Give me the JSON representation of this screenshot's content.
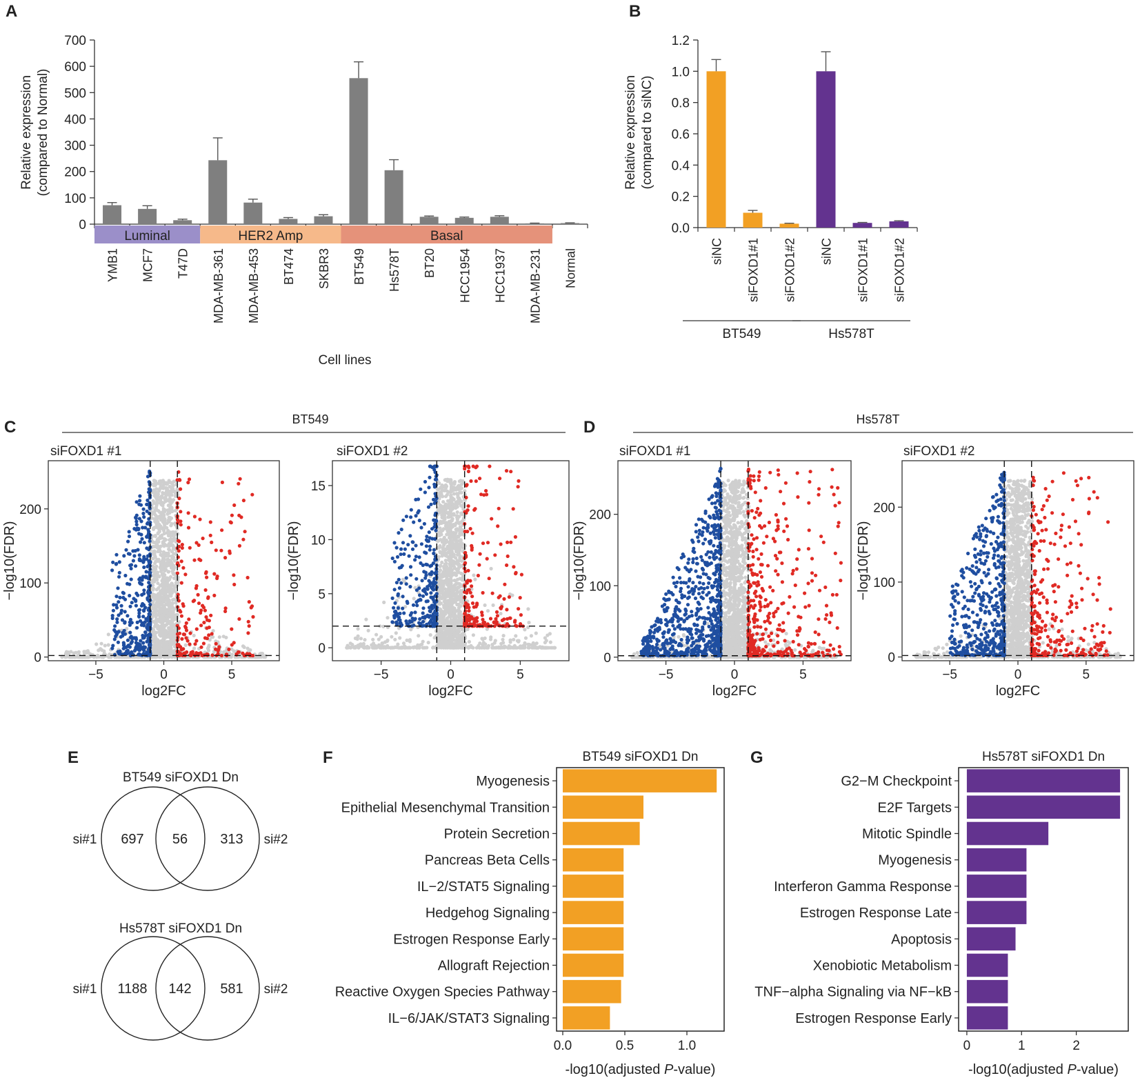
{
  "colors": {
    "bar_gray": "#7f7f7f",
    "orange": "#f2a024",
    "purple": "#63338f",
    "luminal": "#9b8fc9",
    "her2": "#f6b98a",
    "basal": "#e5927a",
    "down": "#1f4ea0",
    "up": "#e02a24",
    "ns": "#cfcfcf"
  },
  "panels": {
    "A": {
      "label": "A",
      "chart_data": {
        "type": "bar",
        "ylabel": "Relative expression (compared to Normal)",
        "ylabel_lines": [
          "Relative expression",
          "(compared to Normal)"
        ],
        "xlabel": "Cell lines",
        "ylim": [
          0,
          700
        ],
        "yticks": [
          "0",
          "100",
          "200",
          "300",
          "400",
          "500",
          "600",
          "700"
        ],
        "categories": [
          "YMB1",
          "MCF7",
          "T47D",
          "MDA-MB-361",
          "MDA-MB-453",
          "BT474",
          "SKBR3",
          "BT549",
          "Hs578T",
          "BT20",
          "HCC1954",
          "HCC1937",
          "MDA-MB-231",
          "Normal"
        ],
        "values": [
          72,
          58,
          15,
          243,
          82,
          20,
          30,
          555,
          205,
          28,
          24,
          28,
          3,
          4
        ],
        "errors": [
          10,
          12,
          4,
          85,
          13,
          5,
          6,
          62,
          40,
          3,
          3,
          4,
          1,
          1
        ],
        "groups": [
          {
            "name": "Luminal",
            "start": 0,
            "end": 2
          },
          {
            "name": "HER2 Amp",
            "start": 3,
            "end": 6
          },
          {
            "name": "Basal",
            "start": 7,
            "end": 12
          }
        ]
      }
    },
    "B": {
      "label": "B",
      "chart_data": {
        "type": "bar",
        "ylabel": "Relative expression (compared to siNC)",
        "ylabel_lines": [
          "Relative expression",
          "(compared to siNC)"
        ],
        "ylim": [
          0,
          1.2
        ],
        "yticks": [
          "0.0",
          "0.2",
          "0.4",
          "0.6",
          "0.8",
          "1.0",
          "1.2"
        ],
        "categories": [
          "siNC",
          "siFOXD1#1",
          "siFOXD1#2",
          "siNC",
          "siFOXD1#1",
          "siFOXD1#2"
        ],
        "values": [
          1.0,
          0.095,
          0.025,
          1.0,
          0.03,
          0.04
        ],
        "errors": [
          0.075,
          0.015,
          0.003,
          0.125,
          0.003,
          0.004
        ],
        "groups": [
          {
            "name": "BT549",
            "start": 0,
            "end": 2
          },
          {
            "name": "Hs578T",
            "start": 3,
            "end": 5
          }
        ]
      }
    },
    "C": {
      "label": "C",
      "header": "BT549"
    },
    "D": {
      "label": "D",
      "header": "Hs578T"
    },
    "volcanos": [
      {
        "title": "siFOXD1 #1",
        "xlabel": "log2FC",
        "ylabel": "−log10(FDR)",
        "xlim": [
          -8.5,
          8.5
        ],
        "ylim": [
          -5,
          265
        ],
        "yticks": [
          0,
          100,
          200
        ],
        "ytick_labels": [
          "0",
          "100",
          "200"
        ],
        "xticks": [
          -5,
          0,
          5
        ],
        "xtick_labels": [
          "−5",
          "0",
          "5"
        ],
        "threshold_y": 2,
        "seed": 11,
        "n_down": 380,
        "n_up": 230,
        "fan": 0.25,
        "left_x": -3.8,
        "right_x": 6.6
      },
      {
        "title": "siFOXD1 #2",
        "xlabel": "log2FC",
        "ylabel": "−log10(FDR)",
        "xlim": [
          -8.5,
          8.5
        ],
        "ylim": [
          -1.2,
          17.3
        ],
        "yticks": [
          0,
          5,
          10,
          15
        ],
        "ytick_labels": [
          "0",
          "5",
          "10",
          "15"
        ],
        "xticks": [
          -5,
          0,
          5
        ],
        "xtick_labels": [
          "−5",
          "0",
          "5"
        ],
        "threshold_y": 2,
        "seed": 23,
        "n_down": 300,
        "n_up": 220,
        "fan": 0.7,
        "left_x": -4.2,
        "right_x": 5.2
      },
      {
        "title": "siFOXD1 #1",
        "xlabel": "log2FC",
        "ylabel": "−log10(FDR)",
        "xlim": [
          -8.5,
          8.5
        ],
        "ylim": [
          -5,
          275
        ],
        "yticks": [
          0,
          100,
          200
        ],
        "ytick_labels": [
          "0",
          "100",
          "200"
        ],
        "xticks": [
          -5,
          0,
          5
        ],
        "xtick_labels": [
          "−5",
          "0",
          "5"
        ],
        "threshold_y": 2,
        "seed": 37,
        "n_down": 800,
        "n_up": 420,
        "fan": 0.25,
        "left_x": -6.8,
        "right_x": 7.8
      },
      {
        "title": "siFOXD1 #2",
        "xlabel": "log2FC",
        "ylabel": "−log10(FDR)",
        "xlim": [
          -8.5,
          8.5
        ],
        "ylim": [
          -5,
          262
        ],
        "yticks": [
          0,
          100,
          200
        ],
        "ytick_labels": [
          "0",
          "100",
          "200"
        ],
        "xticks": [
          -5,
          0,
          5
        ],
        "xtick_labels": [
          "−5",
          "0",
          "5"
        ],
        "threshold_y": 2,
        "seed": 51,
        "n_down": 520,
        "n_up": 300,
        "fan": 0.25,
        "left_x": -5.0,
        "right_x": 6.8
      }
    ],
    "E": {
      "label": "E",
      "venns": [
        {
          "title": "BT549 siFOXD1 Dn",
          "left_only": "697",
          "overlap": "56",
          "right_only": "313",
          "left_label": "si#1",
          "right_label": "si#2"
        },
        {
          "title": "Hs578T siFOXD1 Dn",
          "left_only": "1188",
          "overlap": "142",
          "right_only": "581",
          "left_label": "si#1",
          "right_label": "si#2"
        }
      ]
    },
    "F": {
      "label": "F",
      "chart_data": {
        "type": "bar",
        "orientation": "horizontal",
        "title": "BT549 siFOXD1 Dn",
        "xlabel": "-log10(adjusted P-value)",
        "xlabel_parts": [
          "-log10(adjusted ",
          "P",
          "-value)"
        ],
        "xlim": [
          -0.05,
          1.3
        ],
        "xticks": [
          0,
          0.5,
          1.0
        ],
        "xtick_labels": [
          "0.0",
          "0.5",
          "1.0"
        ],
        "categories": [
          "Myogenesis",
          "Epithelial Mesenchymal Transition",
          "Protein Secretion",
          "Pancreas Beta Cells",
          "IL−2/STAT5 Signaling",
          "Hedgehog Signaling",
          "Estrogen Response Early",
          "Allograft Rejection",
          "Reactive Oxygen Species Pathway",
          "IL−6/JAK/STAT3 Signaling"
        ],
        "values": [
          1.24,
          0.65,
          0.62,
          0.49,
          0.49,
          0.49,
          0.49,
          0.49,
          0.47,
          0.38
        ]
      }
    },
    "G": {
      "label": "G",
      "chart_data": {
        "type": "bar",
        "orientation": "horizontal",
        "title": "Hs578T siFOXD1 Dn",
        "xlabel": "-log10(adjusted P-value)",
        "xlabel_parts": [
          "-log10(adjusted ",
          "P",
          "-value)"
        ],
        "xlim": [
          -0.15,
          2.95
        ],
        "xticks": [
          0,
          1,
          2
        ],
        "xtick_labels": [
          "0",
          "1",
          "2"
        ],
        "categories": [
          "G2−M Checkpoint",
          "E2F Targets",
          "Mitotic Spindle",
          "Myogenesis",
          "Interferon Gamma Response",
          "Estrogen Response Late",
          "Apoptosis",
          "Xenobiotic Metabolism",
          "TNF−alpha Signaling via NF−kB",
          "Estrogen Response Early"
        ],
        "values": [
          2.8,
          2.8,
          1.49,
          1.09,
          1.09,
          1.09,
          0.89,
          0.75,
          0.75,
          0.75
        ]
      }
    }
  }
}
